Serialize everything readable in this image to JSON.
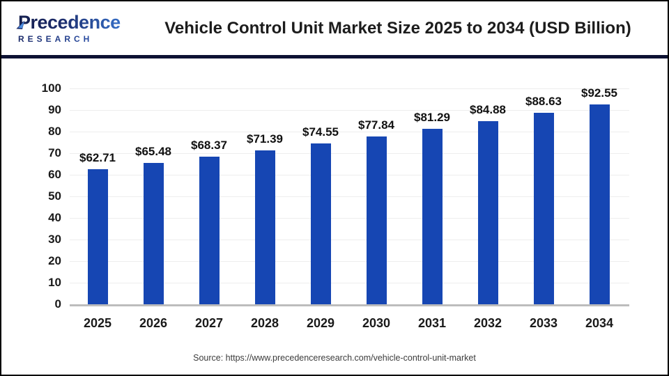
{
  "header": {
    "logo": {
      "line1": "Precedence",
      "line2": "RESEARCH"
    },
    "title": "Vehicle Control Unit Market Size 2025 to 2034 (USD Billion)"
  },
  "footer": {
    "source": "Source: https://www.precedenceresearch.com/vehicle-control-unit-market"
  },
  "colors": {
    "bar": "#1646b3",
    "divider": "#0d1233",
    "gridline": "#ededed",
    "baseline": "#bdbdbd",
    "logo_navy": "#1b2a68",
    "logo_blue": "#3a7bd9",
    "leaf_light_blue": "#4b8de0"
  },
  "chart_data": {
    "type": "bar",
    "title": "Vehicle Control Unit Market Size 2025 to 2034 (USD Billion)",
    "unit": "USD Billion",
    "categories": [
      "2025",
      "2026",
      "2027",
      "2028",
      "2029",
      "2030",
      "2031",
      "2032",
      "2033",
      "2034"
    ],
    "values": [
      62.71,
      65.48,
      68.37,
      71.39,
      74.55,
      77.84,
      81.29,
      84.88,
      88.63,
      92.55
    ],
    "value_labels": [
      "$62.71",
      "$65.48",
      "$68.37",
      "$71.39",
      "$74.55",
      "$77.84",
      "$81.29",
      "$84.88",
      "$88.63",
      "$92.55"
    ],
    "ylim": [
      0,
      100
    ],
    "ytick_step": 10,
    "yticks": [
      0,
      10,
      20,
      30,
      40,
      50,
      60,
      70,
      80,
      90,
      100
    ],
    "grid": true,
    "legend_position": "none"
  }
}
